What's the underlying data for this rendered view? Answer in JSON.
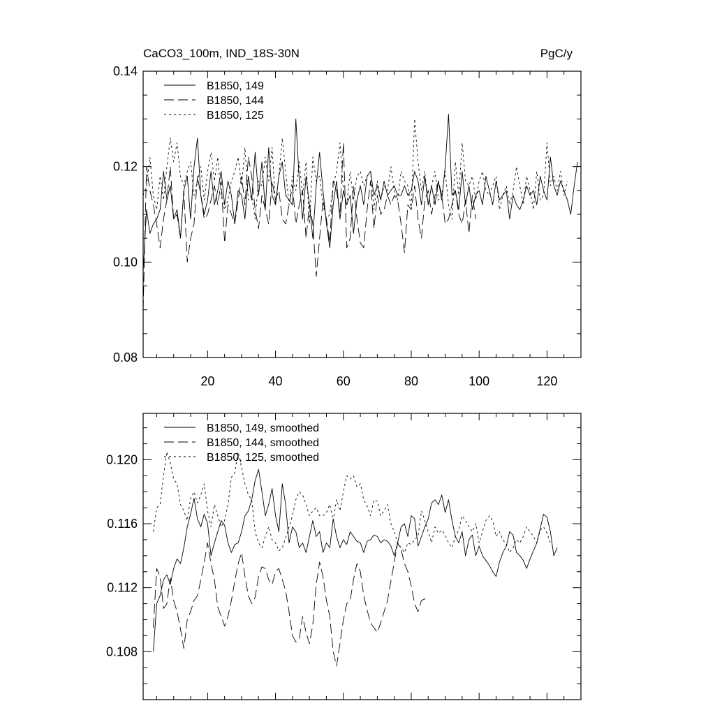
{
  "chart_data": [
    {
      "type": "line",
      "title": "CaCO3_100m, IND_18S-30N",
      "units": "PgC/y",
      "xlim": [
        1,
        130
      ],
      "ylim": [
        0.08,
        0.14
      ],
      "x_ticks": [
        20,
        40,
        60,
        80,
        100,
        120
      ],
      "x_tick_labels": [
        "20",
        "40",
        "60",
        "80",
        "100",
        "120"
      ],
      "y_ticks": [
        0.08,
        0.1,
        0.12,
        0.14
      ],
      "y_tick_labels": [
        "0.08",
        "0.10",
        "0.12",
        "0.14"
      ],
      "grid": false,
      "legend_position": "top-left",
      "series": [
        {
          "name": "B1850, 149",
          "style": "solid",
          "x_start": 1,
          "values": [
            0.098,
            0.111,
            0.106,
            0.108,
            0.109,
            0.111,
            0.119,
            0.113,
            0.116,
            0.109,
            0.111,
            0.105,
            0.115,
            0.118,
            0.109,
            0.12,
            0.126,
            0.114,
            0.11,
            0.113,
            0.119,
            0.112,
            0.115,
            0.119,
            0.112,
            0.117,
            0.114,
            0.108,
            0.115,
            0.114,
            0.109,
            0.118,
            0.113,
            0.123,
            0.114,
            0.121,
            0.111,
            0.124,
            0.114,
            0.112,
            0.118,
            0.121,
            0.114,
            0.113,
            0.112,
            0.13,
            0.117,
            0.109,
            0.118,
            0.112,
            0.105,
            0.116,
            0.123,
            0.115,
            0.108,
            0.103,
            0.112,
            0.117,
            0.109,
            0.115,
            0.112,
            0.114,
            0.106,
            0.113,
            0.116,
            0.112,
            0.118,
            0.119,
            0.114,
            0.116,
            0.113,
            0.117,
            0.114,
            0.115,
            0.116,
            0.114,
            0.114,
            0.116,
            0.114,
            0.115,
            0.119,
            0.117,
            0.112,
            0.118,
            0.112,
            0.116,
            0.112,
            0.117,
            0.113,
            0.12,
            0.131,
            0.114,
            0.115,
            0.111,
            0.119,
            0.112,
            0.116,
            0.111,
            0.114,
            0.115,
            0.112,
            0.118,
            0.115,
            0.112,
            0.117,
            0.113,
            0.114,
            0.115,
            0.109,
            0.114,
            0.112,
            0.111,
            0.113,
            0.116,
            0.114,
            0.115,
            0.112,
            0.118,
            0.115,
            0.113,
            0.122,
            0.116,
            0.114,
            0.117,
            0.115,
            0.113,
            0.11,
            0.116,
            0.121
          ]
        },
        {
          "name": "B1850, 144",
          "style": "dashed",
          "x_start": 1,
          "values": [
            0.09,
            0.12,
            0.115,
            0.112,
            0.108,
            0.103,
            0.109,
            0.113,
            0.12,
            0.109,
            0.11,
            0.105,
            0.115,
            0.1,
            0.105,
            0.108,
            0.118,
            0.114,
            0.109,
            0.11,
            0.113,
            0.116,
            0.112,
            0.117,
            0.104,
            0.112,
            0.11,
            0.108,
            0.113,
            0.118,
            0.112,
            0.122,
            0.118,
            0.111,
            0.107,
            0.114,
            0.111,
            0.108,
            0.117,
            0.113,
            0.115,
            0.109,
            0.108,
            0.112,
            0.116,
            0.108,
            0.112,
            0.115,
            0.105,
            0.112,
            0.108,
            0.097,
            0.105,
            0.113,
            0.109,
            0.104,
            0.117,
            0.115,
            0.11,
            0.125,
            0.103,
            0.105,
            0.116,
            0.109,
            0.104,
            0.103,
            0.111,
            0.117,
            0.107,
            0.114,
            0.11,
            0.111,
            0.114,
            0.112,
            0.114,
            0.113,
            0.108,
            0.102,
            0.112,
            0.111,
            0.116,
            0.109,
            0.105,
            0.113,
            0.115,
            0.11,
            0.114,
            0.117,
            0.114,
            0.108,
            0.109,
            0.112,
            0.115,
            0.11,
            0.108,
            0.113,
            0.106,
            0.114,
            0.109
          ]
        },
        {
          "name": "B1850, 125",
          "style": "dotted",
          "x_start": 1,
          "values": [
            0.114,
            0.116,
            0.122,
            0.114,
            0.111,
            0.118,
            0.113,
            0.12,
            0.126,
            0.121,
            0.125,
            0.118,
            0.116,
            0.119,
            0.121,
            0.114,
            0.117,
            0.12,
            0.113,
            0.119,
            0.123,
            0.117,
            0.122,
            0.114,
            0.111,
            0.113,
            0.117,
            0.119,
            0.122,
            0.116,
            0.124,
            0.113,
            0.114,
            0.109,
            0.117,
            0.116,
            0.122,
            0.117,
            0.124,
            0.112,
            0.118,
            0.126,
            0.119,
            0.112,
            0.118,
            0.115,
            0.121,
            0.114,
            0.121,
            0.108,
            0.122,
            0.117,
            0.118,
            0.112,
            0.109,
            0.11,
            0.116,
            0.119,
            0.125,
            0.115,
            0.112,
            0.119,
            0.113,
            0.118,
            0.119,
            0.116,
            0.118,
            0.119,
            0.111,
            0.117,
            0.113,
            0.116,
            0.115,
            0.12,
            0.115,
            0.113,
            0.119,
            0.117,
            0.116,
            0.111,
            0.13,
            0.121,
            0.115,
            0.119,
            0.112,
            0.116,
            0.119,
            0.113,
            0.114,
            0.119,
            0.112,
            0.109,
            0.121,
            0.114,
            0.125,
            0.117,
            0.116,
            0.118,
            0.113,
            0.117,
            0.119,
            0.115,
            0.114,
            0.116,
            0.118,
            0.111,
            0.114,
            0.116,
            0.112,
            0.115,
            0.12,
            0.116,
            0.112,
            0.118,
            0.115,
            0.111,
            0.119,
            0.113,
            0.114,
            0.125,
            0.116,
            0.118,
            0.115,
            0.119,
            0.114,
            0.117
          ]
        }
      ]
    },
    {
      "type": "line",
      "title": "",
      "xlim": [
        1,
        130
      ],
      "ylim": [
        0.105,
        0.1229
      ],
      "x_ticks": [
        20,
        40,
        60,
        80,
        100,
        120
      ],
      "y_ticks": [
        0.108,
        0.112,
        0.116,
        0.12
      ],
      "y_tick_labels": [
        "0.108",
        "0.112",
        "0.116",
        "0.120"
      ],
      "grid": false,
      "legend_position": "top-left",
      "series": [
        {
          "name": "B1850, 149, smoothed",
          "style": "solid",
          "x_start": 4,
          "values": [
            0.108,
            0.111,
            0.1115,
            0.1125,
            0.1128,
            0.1122,
            0.1132,
            0.1138,
            0.1135,
            0.1145,
            0.1158,
            0.1166,
            0.1176,
            0.1163,
            0.1158,
            0.1166,
            0.116,
            0.114,
            0.1148,
            0.1155,
            0.1162,
            0.1159,
            0.1148,
            0.1142,
            0.1147,
            0.1148,
            0.1155,
            0.1165,
            0.1168,
            0.1175,
            0.1187,
            0.1194,
            0.118,
            0.1165,
            0.1172,
            0.1182,
            0.1165,
            0.1155,
            0.1185,
            0.1172,
            0.1148,
            0.1158,
            0.1155,
            0.1145,
            0.1148,
            0.1142,
            0.1152,
            0.1162,
            0.1152,
            0.1155,
            0.1142,
            0.1148,
            0.1145,
            0.1163,
            0.1152,
            0.1145,
            0.115,
            0.1147,
            0.1155,
            0.1152,
            0.1149,
            0.1148,
            0.1142,
            0.1149,
            0.115,
            0.1153,
            0.1152,
            0.1148,
            0.115,
            0.1149,
            0.1146,
            0.114,
            0.1148,
            0.1158,
            0.116,
            0.1152,
            0.1165,
            0.1163,
            0.1146,
            0.1152,
            0.1158,
            0.1163,
            0.1173,
            0.1175,
            0.1172,
            0.1178,
            0.1167,
            0.1175,
            0.1162,
            0.1152,
            0.1148,
            0.1155,
            0.114,
            0.115,
            0.1153,
            0.114,
            0.1146,
            0.114,
            0.1137,
            0.1134,
            0.113,
            0.1127,
            0.1136,
            0.1142,
            0.1146,
            0.1155,
            0.1153,
            0.1142,
            0.114,
            0.1137,
            0.1132,
            0.1138,
            0.1143,
            0.1148,
            0.1157,
            0.1166,
            0.1164,
            0.1155,
            0.114,
            0.1145
          ]
        },
        {
          "name": "B1850, 144, smoothed",
          "style": "dashed",
          "x_start": 4,
          "values": [
            0.1095,
            0.1132,
            0.1127,
            0.1107,
            0.111,
            0.1126,
            0.1112,
            0.1105,
            0.1094,
            0.1082,
            0.11,
            0.1105,
            0.1112,
            0.1115,
            0.1125,
            0.1136,
            0.1148,
            0.1135,
            0.1125,
            0.1108,
            0.1102,
            0.1096,
            0.1102,
            0.1112,
            0.1124,
            0.1135,
            0.1142,
            0.1127,
            0.1115,
            0.111,
            0.1114,
            0.1127,
            0.1133,
            0.1132,
            0.1125,
            0.1122,
            0.113,
            0.1132,
            0.1125,
            0.1118,
            0.1105,
            0.109,
            0.1086,
            0.1088,
            0.1102,
            0.1092,
            0.1085,
            0.1097,
            0.1122,
            0.1136,
            0.1127,
            0.1112,
            0.1102,
            0.108,
            0.1071,
            0.1085,
            0.11,
            0.111,
            0.1112,
            0.1125,
            0.1135,
            0.113,
            0.1115,
            0.1106,
            0.1098,
            0.1095,
            0.1092,
            0.1098,
            0.1105,
            0.1112,
            0.1124,
            0.1136,
            0.1148,
            0.1144,
            0.1135,
            0.113,
            0.1121,
            0.111,
            0.1105,
            0.1112,
            0.1113,
            0.1111
          ]
        },
        {
          "name": "B1850, 125, smoothed",
          "style": "dotted",
          "x_start": 4,
          "values": [
            0.1155,
            0.117,
            0.1172,
            0.119,
            0.1205,
            0.1198,
            0.1188,
            0.1185,
            0.1172,
            0.1168,
            0.1162,
            0.1176,
            0.118,
            0.1173,
            0.1178,
            0.1185,
            0.1168,
            0.1158,
            0.1172,
            0.1165,
            0.1158,
            0.1162,
            0.1172,
            0.1189,
            0.1192,
            0.1205,
            0.1195,
            0.1185,
            0.1178,
            0.1175,
            0.1155,
            0.1148,
            0.1145,
            0.1152,
            0.1158,
            0.115,
            0.1148,
            0.1143,
            0.1145,
            0.1151,
            0.1158,
            0.1165,
            0.1175,
            0.118,
            0.1178,
            0.1172,
            0.1165,
            0.1168,
            0.117,
            0.1165,
            0.1165,
            0.1167,
            0.1172,
            0.1162,
            0.1175,
            0.1168,
            0.118,
            0.119,
            0.1188,
            0.119,
            0.1183,
            0.1185,
            0.1175,
            0.1171,
            0.1165,
            0.1175,
            0.1174,
            0.1165,
            0.1168,
            0.1172,
            0.116,
            0.1155,
            0.1148,
            0.1145,
            0.1142,
            0.1148,
            0.1147,
            0.115,
            0.1152,
            0.1168,
            0.1162,
            0.1155,
            0.1148,
            0.1158,
            0.1154,
            0.1156,
            0.1153,
            0.1148,
            0.1145,
            0.1152,
            0.1156,
            0.1165,
            0.1162,
            0.1158,
            0.1155,
            0.116,
            0.1148,
            0.1155,
            0.1162,
            0.1165,
            0.1162,
            0.1152,
            0.1155,
            0.115,
            0.1147,
            0.1142,
            0.1145,
            0.115,
            0.1148,
            0.1152,
            0.1158,
            0.1155,
            0.1152,
            0.1148,
            0.1156,
            0.1158,
            0.1154,
            0.1148
          ]
        }
      ]
    }
  ]
}
